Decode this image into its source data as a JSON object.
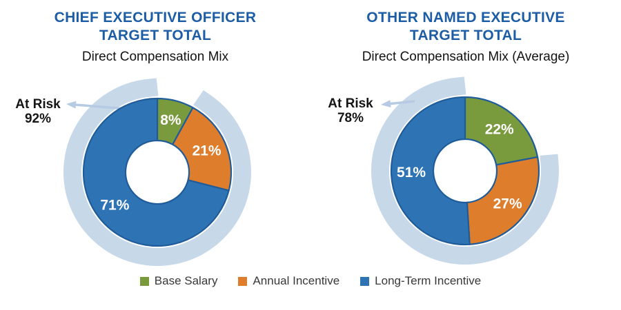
{
  "colors": {
    "title_blue": "#1C5DA5",
    "slice_border": "#1F5C99",
    "at_risk_arc": "#C7D8E9",
    "arrow": "#B6CBE3",
    "base_salary_green": "#7A9A3E",
    "annual_incentive_orange": "#DE7D2B",
    "long_term_incentive_blue": "#2E74B5",
    "legend_text": "#383838"
  },
  "chart_data": [
    {
      "type": "pie",
      "style": "donut",
      "title": "CHIEF EXECUTIVE OFFICER\nTARGET TOTAL",
      "subtitle": "Direct Compensation Mix",
      "at_risk": {
        "label": "At Risk",
        "value": "92%",
        "pct": 92
      },
      "slices": [
        {
          "label": "Base Salary",
          "pct": 8,
          "display": "8%",
          "color": "#7A9A3E"
        },
        {
          "label": "Annual Incentive",
          "pct": 21,
          "display": "21%",
          "color": "#DE7D2B"
        },
        {
          "label": "Long-Term Incentive",
          "pct": 71,
          "display": "71%",
          "color": "#2E74B5"
        }
      ]
    },
    {
      "type": "pie",
      "style": "donut",
      "title": "OTHER NAMED EXECUTIVE\nTARGET TOTAL",
      "subtitle": "Direct Compensation Mix (Average)",
      "at_risk": {
        "label": "At Risk",
        "value": "78%",
        "pct": 78
      },
      "slices": [
        {
          "label": "Base Salary",
          "pct": 22,
          "display": "22%",
          "color": "#7A9A3E"
        },
        {
          "label": "Annual Incentive",
          "pct": 27,
          "display": "27%",
          "color": "#DE7D2B"
        },
        {
          "label": "Long-Term Incentive",
          "pct": 51,
          "display": "51%",
          "color": "#2E74B5"
        }
      ]
    }
  ],
  "legend": {
    "items": [
      {
        "label": "Base Salary",
        "color": "#7A9A3E"
      },
      {
        "label": "Annual Incentive",
        "color": "#DE7D2B"
      },
      {
        "label": "Long-Term Incentive",
        "color": "#2E74B5"
      }
    ]
  }
}
